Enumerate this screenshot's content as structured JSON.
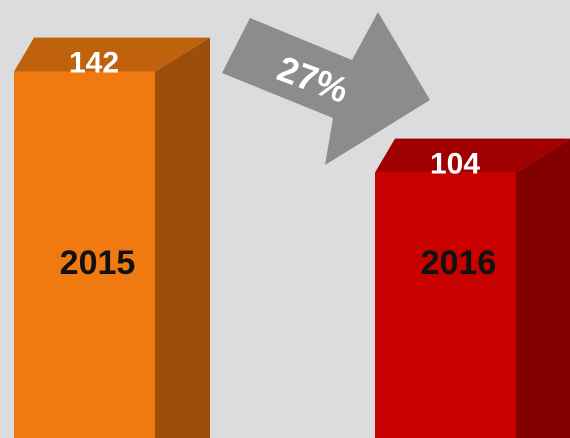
{
  "chart_data": {
    "type": "bar",
    "categories": [
      "2015",
      "2016"
    ],
    "values": [
      142,
      104
    ],
    "colors": [
      "#f07a10",
      "#c80000"
    ],
    "annotation": "27%"
  }
}
